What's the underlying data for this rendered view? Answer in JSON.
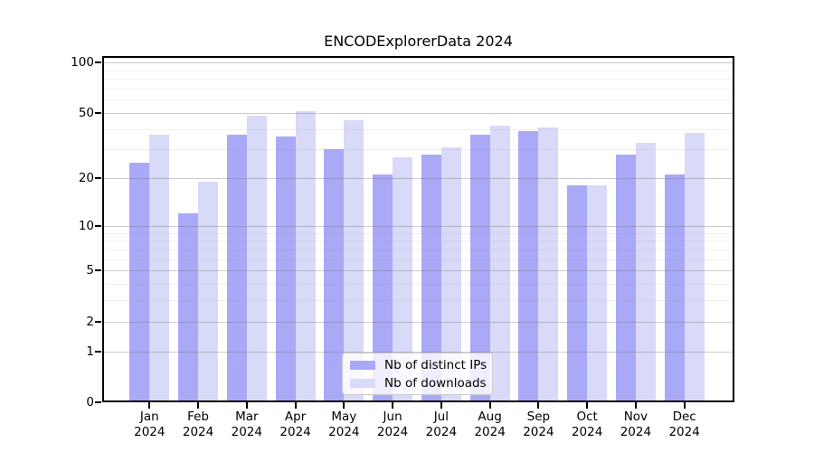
{
  "title": "ENCODExplorerData 2024",
  "chart_data": {
    "type": "bar",
    "categories": [
      "Jan",
      "Feb",
      "Mar",
      "Apr",
      "May",
      "Jun",
      "Jul",
      "Aug",
      "Sep",
      "Oct",
      "Nov",
      "Dec"
    ],
    "year_suffix": "2024",
    "series": [
      {
        "name": "Nb of distinct IPs",
        "color": "#a9a9f8",
        "values": [
          25,
          12,
          37,
          36,
          30,
          21,
          28,
          37,
          39,
          18,
          28,
          21
        ]
      },
      {
        "name": "Nb of downloads",
        "color": "#d9d9f8",
        "values": [
          37,
          19,
          48,
          51,
          45,
          27,
          31,
          42,
          41,
          18,
          33,
          38
        ]
      }
    ],
    "yscale": "log1p",
    "ylim": [
      0,
      109
    ],
    "yticks": [
      0,
      1,
      2,
      5,
      10,
      20,
      50,
      100
    ],
    "minor_yticks": [
      3,
      4,
      6,
      7,
      8,
      9,
      30,
      40,
      60,
      70,
      80,
      90
    ],
    "grid": true,
    "legend_position": "bottom-center-inside"
  }
}
